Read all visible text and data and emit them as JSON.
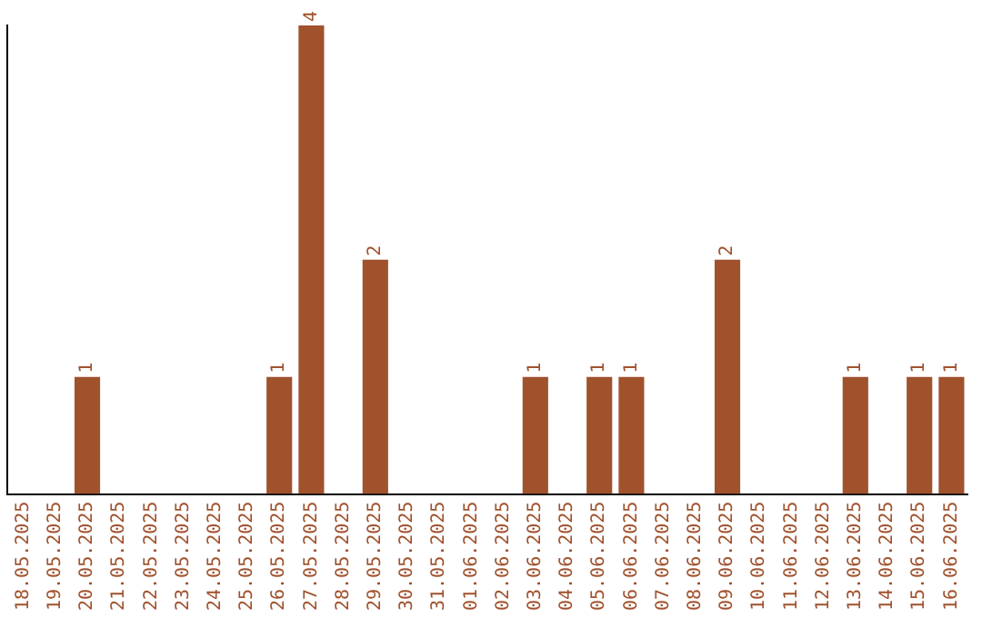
{
  "chart_data": {
    "type": "bar",
    "categories": [
      "18.05.2025",
      "19.05.2025",
      "20.05.2025",
      "21.05.2025",
      "22.05.2025",
      "23.05.2025",
      "24.05.2025",
      "25.05.2025",
      "26.05.2025",
      "27.05.2025",
      "28.05.2025",
      "29.05.2025",
      "30.05.2025",
      "31.05.2025",
      "01.06.2025",
      "02.06.2025",
      "03.06.2025",
      "04.06.2025",
      "05.06.2025",
      "06.06.2025",
      "07.06.2025",
      "08.06.2025",
      "09.06.2025",
      "10.06.2025",
      "11.06.2025",
      "12.06.2025",
      "13.06.2025",
      "14.06.2025",
      "15.06.2025",
      "16.06.2025"
    ],
    "values": [
      0,
      0,
      1,
      0,
      0,
      0,
      0,
      0,
      1,
      4,
      0,
      2,
      0,
      0,
      0,
      0,
      1,
      0,
      1,
      1,
      0,
      0,
      2,
      0,
      0,
      0,
      1,
      0,
      1,
      1
    ],
    "value_labels": [
      null,
      null,
      "1",
      null,
      null,
      null,
      null,
      null,
      "1",
      "4",
      null,
      "2",
      null,
      null,
      null,
      null,
      "1",
      null,
      "1",
      "1",
      null,
      null,
      "2",
      null,
      null,
      null,
      "1",
      null,
      "1",
      "1"
    ],
    "color": "#a0522d",
    "relative": false,
    "tick_labels": "x",
    "grid": false,
    "legend": false
  }
}
